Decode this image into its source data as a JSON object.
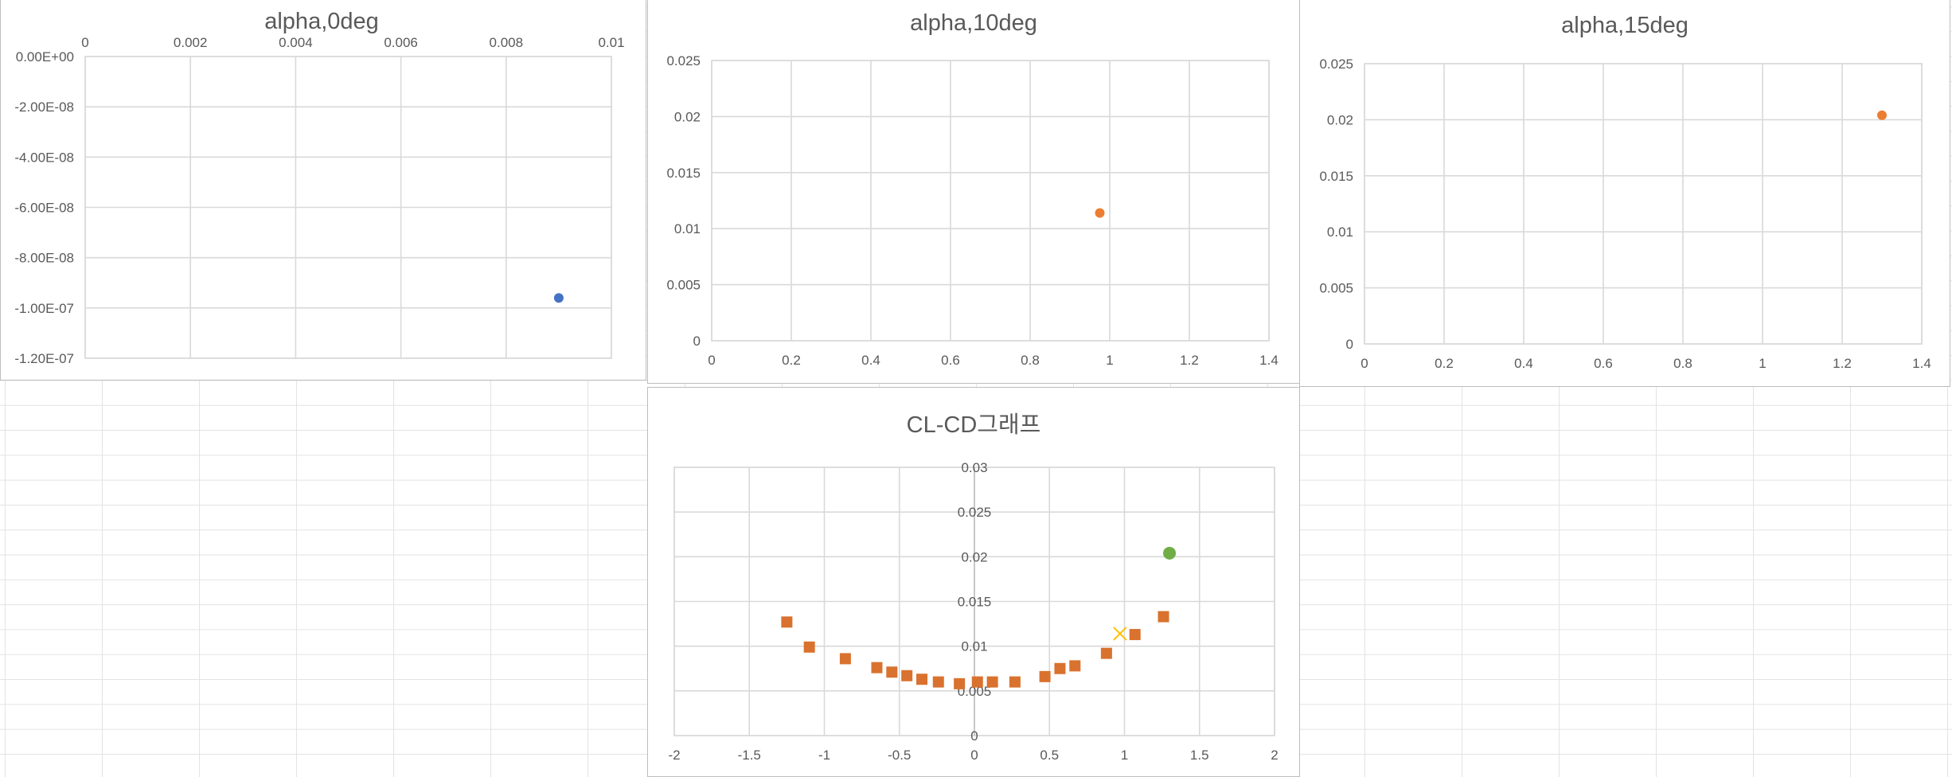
{
  "charts": [
    {
      "id": "alpha0",
      "title": "alpha,0deg",
      "type": "scatter",
      "xlim": [
        0,
        0.01
      ],
      "ylim": [
        -1.2e-07,
        0
      ],
      "x_ticks": [
        "0",
        "0.002",
        "0.004",
        "0.006",
        "0.008",
        "0.01"
      ],
      "y_ticks": [
        "0.00E+00",
        "-2.00E-08",
        "-4.00E-08",
        "-6.00E-08",
        "-8.00E-08",
        "-1.00E-07",
        "-1.20E-07"
      ],
      "series": [
        {
          "color": "#4472c4",
          "marker": "circle",
          "points": [
            [
              0.009,
              -9.6e-08
            ]
          ]
        }
      ]
    },
    {
      "id": "alpha10",
      "title": "alpha,10deg",
      "type": "scatter",
      "xlim": [
        0,
        1.4
      ],
      "ylim": [
        0,
        0.025
      ],
      "x_ticks": [
        "0",
        "0.2",
        "0.4",
        "0.6",
        "0.8",
        "1",
        "1.2",
        "1.4"
      ],
      "y_ticks": [
        "0.025",
        "0.02",
        "0.015",
        "0.01",
        "0.005",
        "0"
      ],
      "series": [
        {
          "color": "#ed7d31",
          "marker": "circle",
          "points": [
            [
              0.975,
              0.0114
            ]
          ]
        }
      ]
    },
    {
      "id": "alpha15",
      "title": "alpha,15deg",
      "type": "scatter",
      "xlim": [
        0,
        1.4
      ],
      "ylim": [
        0,
        0.025
      ],
      "x_ticks": [
        "0",
        "0.2",
        "0.4",
        "0.6",
        "0.8",
        "1",
        "1.2",
        "1.4"
      ],
      "y_ticks": [
        "0.025",
        "0.02",
        "0.015",
        "0.01",
        "0.005",
        "0"
      ],
      "series": [
        {
          "color": "#ed7d31",
          "marker": "circle",
          "points": [
            [
              1.3,
              0.0204
            ]
          ]
        }
      ]
    },
    {
      "id": "clcd",
      "title": "CL-CD그래프",
      "type": "scatter",
      "xlim": [
        -2,
        2
      ],
      "ylim": [
        0,
        0.03
      ],
      "x_ticks": [
        "-2",
        "-1.5",
        "-1",
        "-0.5",
        "0",
        "0.5",
        "1",
        "1.5",
        "2"
      ],
      "y_ticks": [
        "0.03",
        "0.025",
        "0.02",
        "0.015",
        "0.01",
        "0.005",
        "0"
      ],
      "series": [
        {
          "color": "#d9722f",
          "marker": "square",
          "points": [
            [
              -1.25,
              0.0127
            ],
            [
              -1.1,
              0.0099
            ],
            [
              -0.86,
              0.0086
            ],
            [
              -0.65,
              0.0076
            ],
            [
              -0.55,
              0.0071
            ],
            [
              -0.45,
              0.0067
            ],
            [
              -0.35,
              0.0063
            ],
            [
              -0.24,
              0.006
            ],
            [
              -0.1,
              0.0058
            ],
            [
              0.02,
              0.006
            ],
            [
              0.12,
              0.006
            ],
            [
              0.27,
              0.006
            ],
            [
              0.47,
              0.0066
            ],
            [
              0.57,
              0.0075
            ],
            [
              0.67,
              0.0078
            ],
            [
              0.88,
              0.0092
            ],
            [
              1.07,
              0.0113
            ],
            [
              1.26,
              0.0133
            ]
          ]
        },
        {
          "color": "#ffc000",
          "marker": "x",
          "points": [
            [
              0.97,
              0.0114
            ]
          ]
        },
        {
          "color": "#70ad47",
          "marker": "circle",
          "points": [
            [
              1.3,
              0.0204
            ]
          ]
        }
      ]
    }
  ]
}
